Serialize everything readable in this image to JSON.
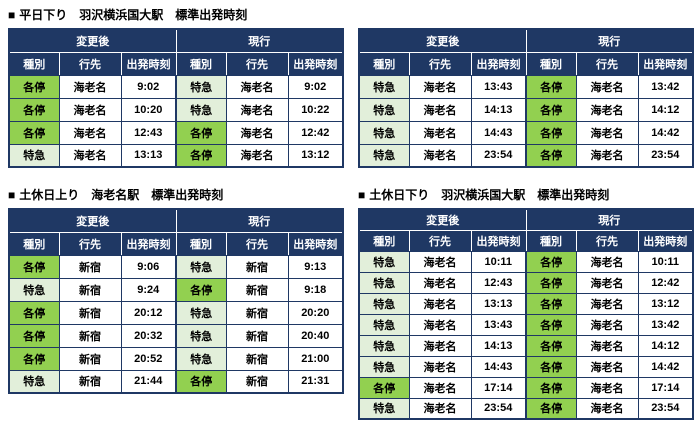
{
  "colors": {
    "header_bg": "#1f3864",
    "header_text": "#ffffff",
    "border": "#1f3864",
    "local_bg": "#92d050",
    "express_bg": "#e2efda",
    "page_bg": "#ffffff"
  },
  "table_header": {
    "changed": "変更後",
    "current": "現行",
    "type": "種別",
    "destination": "行先",
    "time": "出発時刻"
  },
  "type_colors": {
    "各停": "#92d050",
    "特急": "#e2efda"
  },
  "tables": [
    {
      "bullet": "■",
      "title": "平日下り　羽沢横浜国大駅　標準出発時刻",
      "rows": [
        [
          "各停",
          "海老名",
          "9:02",
          "特急",
          "海老名",
          "9:02"
        ],
        [
          "各停",
          "海老名",
          "10:20",
          "特急",
          "海老名",
          "10:22"
        ],
        [
          "各停",
          "海老名",
          "12:43",
          "各停",
          "海老名",
          "12:42"
        ],
        [
          "特急",
          "海老名",
          "13:13",
          "各停",
          "海老名",
          "13:12"
        ]
      ]
    },
    {
      "bullet": "",
      "title": "",
      "rows": [
        [
          "特急",
          "海老名",
          "13:43",
          "各停",
          "海老名",
          "13:42"
        ],
        [
          "特急",
          "海老名",
          "14:13",
          "各停",
          "海老名",
          "14:12"
        ],
        [
          "特急",
          "海老名",
          "14:43",
          "各停",
          "海老名",
          "14:42"
        ],
        [
          "特急",
          "海老名",
          "23:54",
          "各停",
          "海老名",
          "23:54"
        ]
      ]
    },
    {
      "bullet": "■",
      "title": "土休日上り　海老名駅　標準出発時刻",
      "rows": [
        [
          "各停",
          "新宿",
          "9:06",
          "特急",
          "新宿",
          "9:13"
        ],
        [
          "特急",
          "新宿",
          "9:24",
          "各停",
          "新宿",
          "9:18"
        ],
        [
          "各停",
          "新宿",
          "20:12",
          "特急",
          "新宿",
          "20:20"
        ],
        [
          "各停",
          "新宿",
          "20:32",
          "特急",
          "新宿",
          "20:40"
        ],
        [
          "各停",
          "新宿",
          "20:52",
          "特急",
          "新宿",
          "21:00"
        ],
        [
          "特急",
          "新宿",
          "21:44",
          "各停",
          "新宿",
          "21:31"
        ]
      ]
    },
    {
      "bullet": "■",
      "title": "土休日下り　羽沢横浜国大駅　標準出発時刻",
      "rows": [
        [
          "特急",
          "海老名",
          "10:11",
          "各停",
          "海老名",
          "10:11"
        ],
        [
          "特急",
          "海老名",
          "12:43",
          "各停",
          "海老名",
          "12:42"
        ],
        [
          "特急",
          "海老名",
          "13:13",
          "各停",
          "海老名",
          "13:12"
        ],
        [
          "特急",
          "海老名",
          "13:43",
          "各停",
          "海老名",
          "13:42"
        ],
        [
          "特急",
          "海老名",
          "14:13",
          "各停",
          "海老名",
          "14:12"
        ],
        [
          "特急",
          "海老名",
          "14:43",
          "各停",
          "海老名",
          "14:42"
        ],
        [
          "各停",
          "海老名",
          "17:14",
          "各停",
          "海老名",
          "17:14"
        ],
        [
          "特急",
          "海老名",
          "23:54",
          "各停",
          "海老名",
          "23:54"
        ]
      ]
    }
  ]
}
